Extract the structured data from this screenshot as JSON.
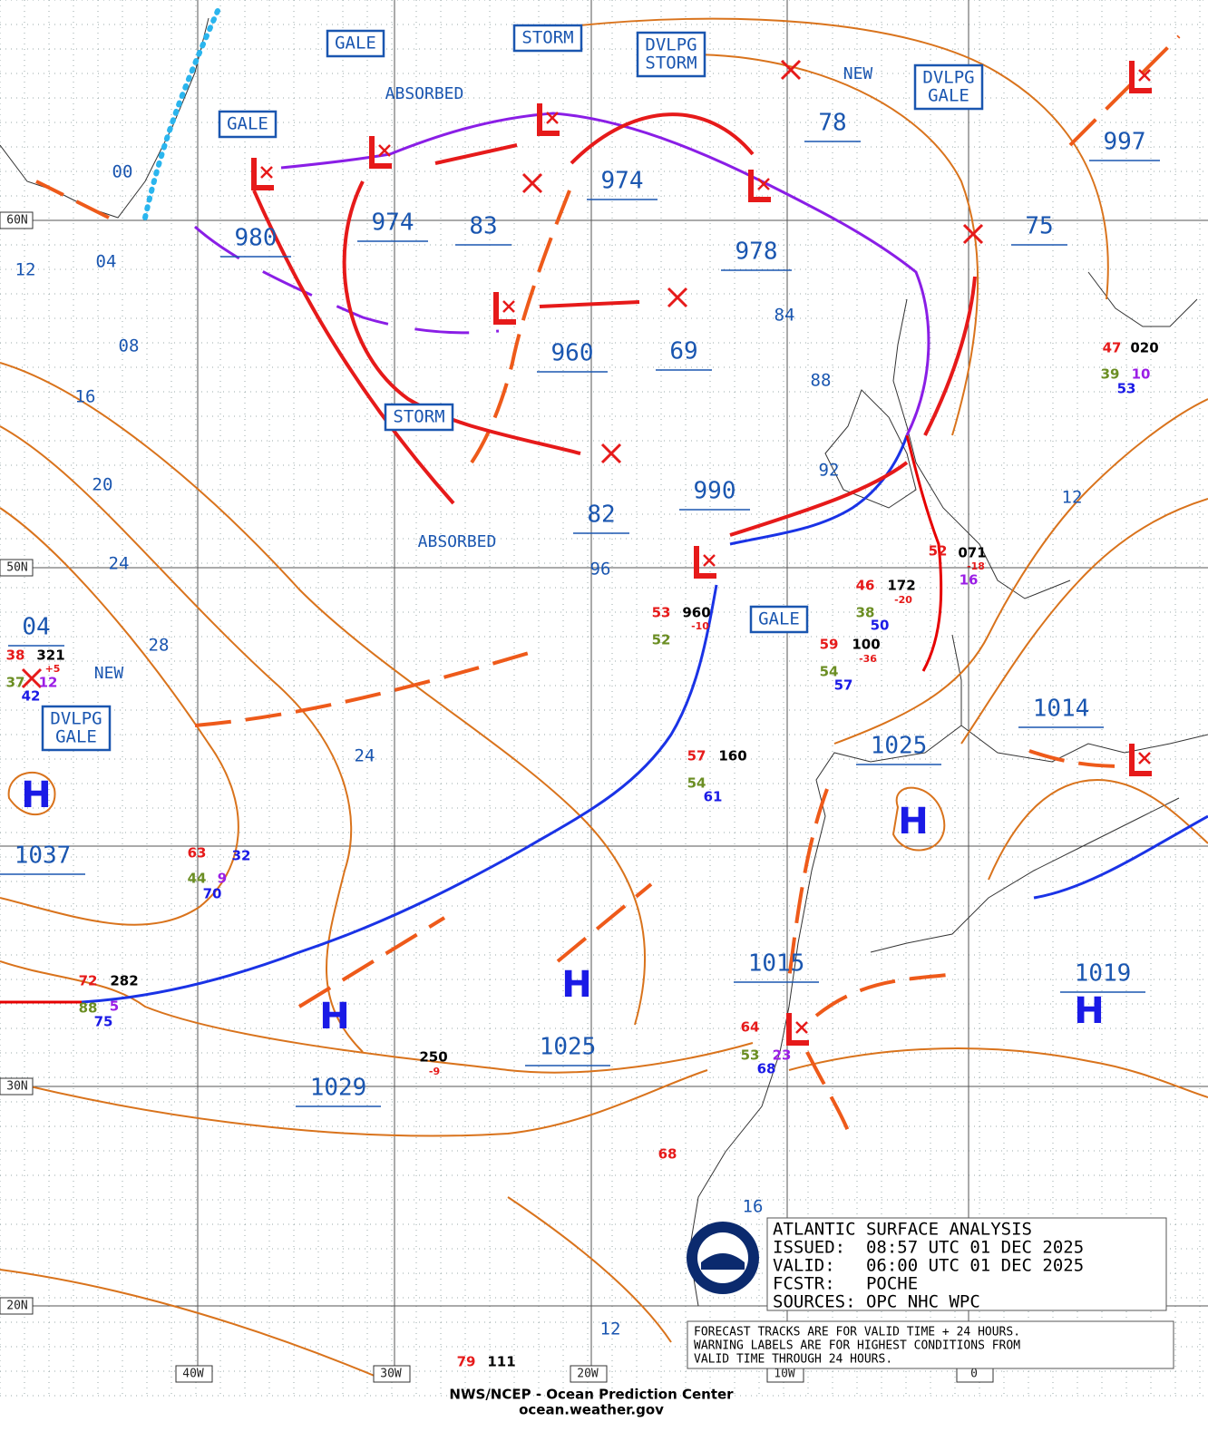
{
  "warnings": [
    [
      "GALE"
    ],
    [
      "STORM"
    ],
    [
      "DVLPG",
      "STORM"
    ],
    [
      "DVLPG",
      "GALE"
    ],
    [
      "GALE"
    ],
    [
      "STORM"
    ],
    [
      "GALE"
    ],
    [
      "DVLPG",
      "GALE"
    ]
  ],
  "notes_labels": [
    "ABSORBED",
    "ABSORBED",
    "NEW",
    "NEW"
  ],
  "center_pressures": [
    "980",
    "974",
    "83",
    "974",
    "978",
    "78",
    "75",
    "997",
    "960",
    "69",
    "990",
    "82",
    "04",
    "1037",
    "1025",
    "1014",
    "1015",
    "1019",
    "1025",
    "1029"
  ],
  "isobar_labels": [
    "00",
    "12",
    "04",
    "08",
    "16",
    "20",
    "24",
    "28",
    "24",
    "84",
    "88",
    "92",
    "96",
    "12",
    "16",
    "12"
  ],
  "highs": [
    "H",
    "H",
    "H",
    "H",
    "H"
  ],
  "grid_labels": [
    "60N",
    "50N",
    "30N",
    "20N",
    "40W",
    "30W",
    "20W",
    "10W",
    "0"
  ],
  "station_obs": [
    "53",
    "960",
    "-10",
    "52",
    "47",
    "020",
    "39",
    "10",
    "53",
    "52",
    "071",
    "-18",
    "16",
    "46",
    "172",
    "-20",
    "38",
    "50",
    "59",
    "100",
    "-36",
    "54",
    "57",
    "57",
    "160",
    "54",
    "61",
    "63",
    "32",
    "44",
    "9",
    "70",
    "72",
    "282",
    "88",
    "5",
    "75",
    "250",
    "-9",
    "64",
    "53",
    "23",
    "68",
    "68",
    "79",
    "111",
    "38",
    "321",
    "+5",
    "37",
    "12",
    "42"
  ],
  "info_box": [
    "ATLANTIC SURFACE ANALYSIS",
    "ISSUED:  08:57 UTC 01 DEC 2025",
    "VALID:   06:00 UTC 01 DEC 2025",
    "FCSTR:   POCHE",
    "SOURCES: OPC NHC WPC"
  ],
  "disclaimer": [
    "FORECAST TRACKS ARE FOR VALID TIME + 24 HOURS.",
    "WARNING LABELS ARE FOR HIGHEST CONDITIONS FROM",
    "VALID TIME THROUGH 24 HOURS."
  ],
  "credits": [
    "NWS/NCEP - Ocean Prediction Center",
    "ocean.weather.gov"
  ]
}
